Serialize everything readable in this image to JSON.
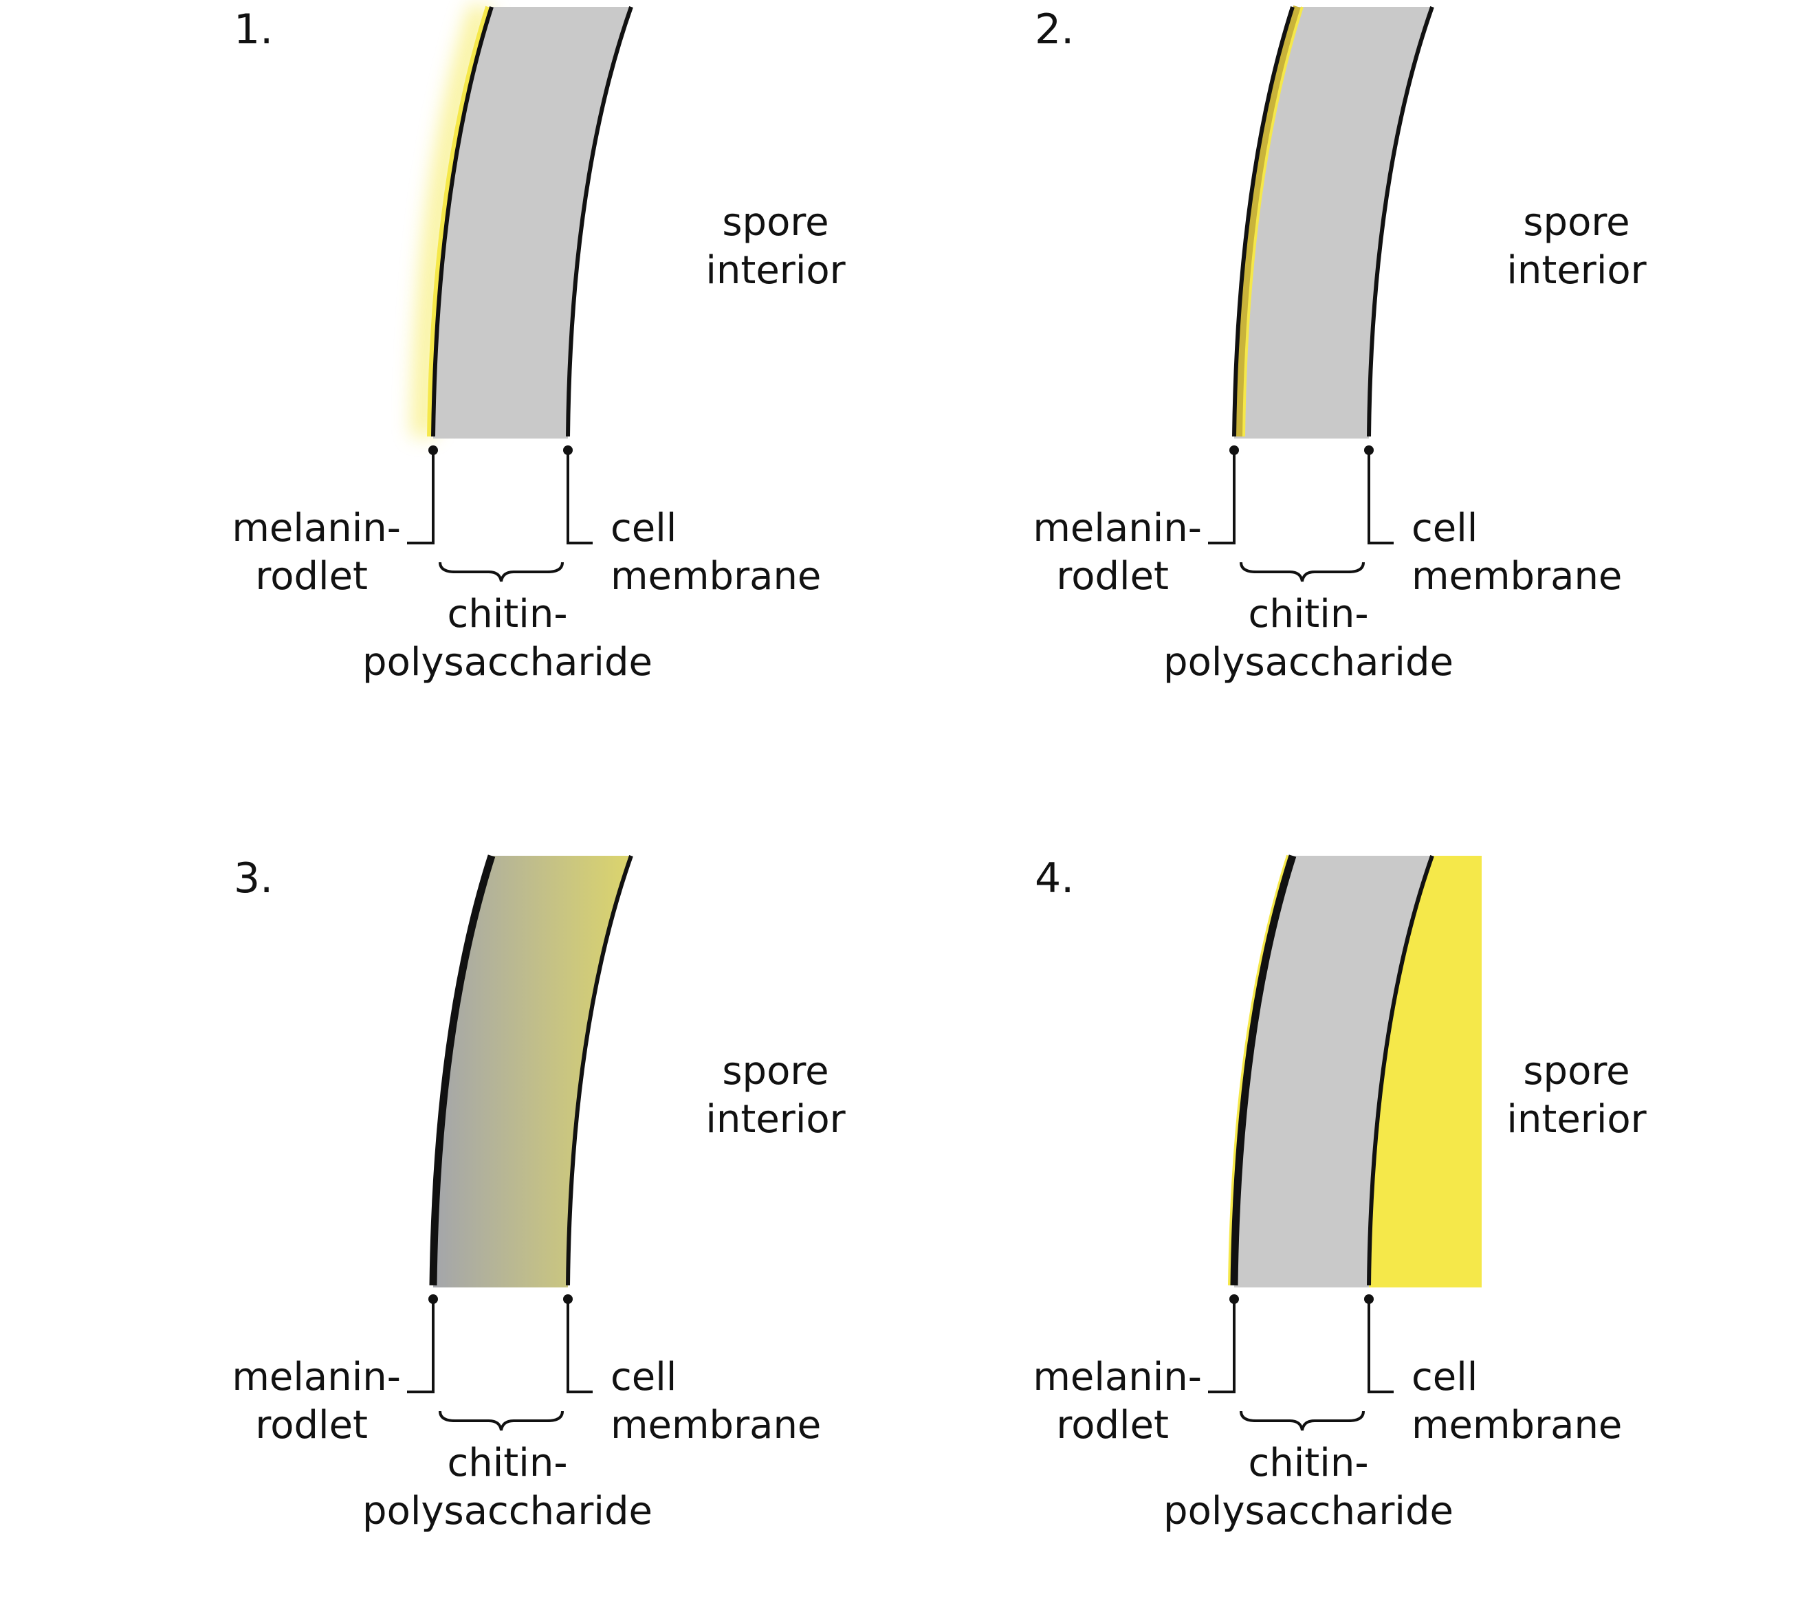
{
  "panels": [
    {
      "number": "1.",
      "variant": "outer-glow",
      "labels": {
        "outer_layer": [
          "melanin-",
          "rodlet"
        ],
        "middle_layer": [
          "chitin-",
          "polysaccharide"
        ],
        "inner_layer": [
          "cell",
          "membrane"
        ],
        "interior": [
          "spore",
          "interior"
        ]
      }
    },
    {
      "number": "2.",
      "variant": "outer-band",
      "labels": {
        "outer_layer": [
          "melanin-",
          "rodlet"
        ],
        "middle_layer": [
          "chitin-",
          "polysaccharide"
        ],
        "inner_layer": [
          "cell",
          "membrane"
        ],
        "interior": [
          "spore",
          "interior"
        ]
      }
    },
    {
      "number": "3.",
      "variant": "wall-gradient",
      "labels": {
        "outer_layer": [
          "melanin-",
          "rodlet"
        ],
        "middle_layer": [
          "chitin-",
          "polysaccharide"
        ],
        "inner_layer": [
          "cell",
          "membrane"
        ],
        "interior": [
          "spore",
          "interior"
        ]
      }
    },
    {
      "number": "4.",
      "variant": "interior-fill",
      "labels": {
        "outer_layer": [
          "melanin-",
          "rodlet"
        ],
        "middle_layer": [
          "chitin-",
          "polysaccharide"
        ],
        "inner_layer": [
          "cell",
          "membrane"
        ],
        "interior": [
          "spore",
          "interior"
        ]
      }
    }
  ],
  "colors": {
    "wall_gray": "#c9c9c9",
    "highlight_yellow": "#f5e84a",
    "band_olive": "#c9b33a",
    "gradient_gray": "#a3a5ab",
    "gradient_yellow": "#dcd56c",
    "line_black": "#111111"
  }
}
